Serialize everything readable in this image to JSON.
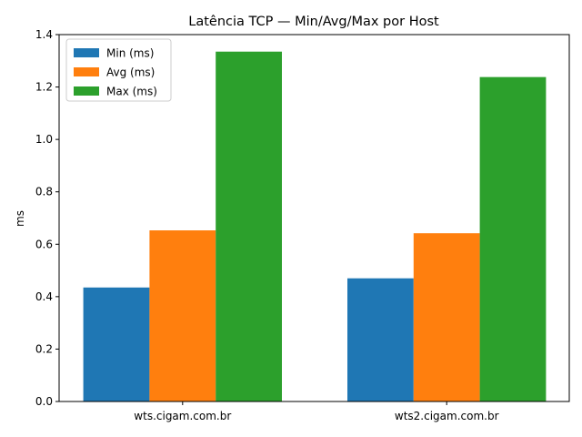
{
  "chart_data": {
    "type": "bar",
    "title": "Latência TCP — Min/Avg/Max por Host",
    "xlabel": "",
    "ylabel": "ms",
    "categories": [
      "wts.cigam.com.br",
      "wts2.cigam.com.br"
    ],
    "series": [
      {
        "name": "Min (ms)",
        "values": [
          0.435,
          0.47
        ],
        "color": "#1f77b4"
      },
      {
        "name": "Avg (ms)",
        "values": [
          0.653,
          0.642
        ],
        "color": "#ff7f0e"
      },
      {
        "name": "Max (ms)",
        "values": [
          1.335,
          1.238
        ],
        "color": "#2ca02c"
      }
    ],
    "ylim": [
      0,
      1.4
    ],
    "yticks": [
      "0.0",
      "0.2",
      "0.4",
      "0.6",
      "0.8",
      "1.0",
      "1.2",
      "1.4"
    ],
    "legend": "top-left",
    "grid": false
  }
}
